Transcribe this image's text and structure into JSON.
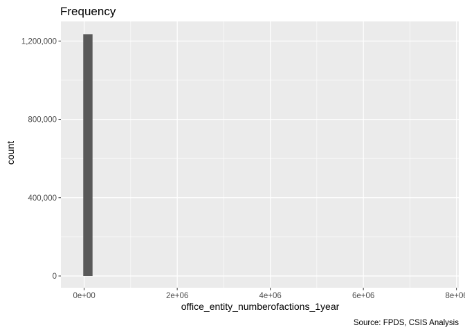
{
  "chart_data": {
    "type": "bar",
    "title": "Frequency",
    "xlabel": "office_entity_numberofactions_1year",
    "ylabel": "count",
    "caption": "Source: FPDS, CSIS Analysis",
    "xlim": [
      -500000,
      8050000
    ],
    "ylim": [
      -60000,
      1300000
    ],
    "x_ticks": [
      0,
      2000000,
      4000000,
      6000000,
      8000000
    ],
    "x_tick_labels": [
      "0e+00",
      "2e+06",
      "4e+06",
      "6e+06",
      "8e+06"
    ],
    "x_minor_ticks": [
      1000000,
      3000000,
      5000000,
      7000000
    ],
    "y_ticks": [
      0,
      400000,
      800000,
      1200000
    ],
    "y_tick_labels": [
      "0",
      "400,000",
      "800,000",
      "1,200,000"
    ],
    "y_minor_ticks": [
      200000,
      600000,
      1000000
    ],
    "bins": [
      {
        "x_start": -20000,
        "x_end": 180000,
        "count": 1235000
      }
    ],
    "colors": {
      "panel": "#ebebeb",
      "grid": "#ffffff",
      "bar": "#595959",
      "tick": "#333333"
    }
  }
}
